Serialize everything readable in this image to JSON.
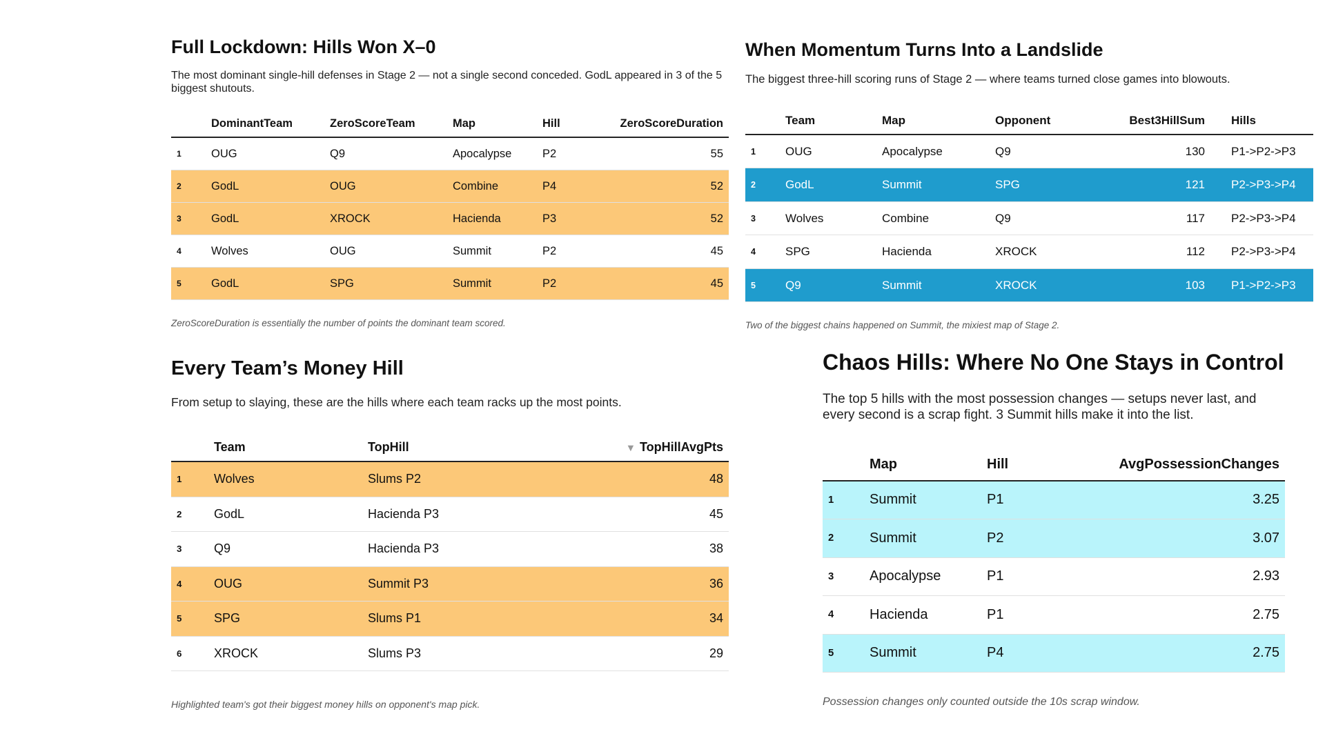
{
  "colors": {
    "orange_highlight": "#fcc878",
    "blue_highlight": "#1f9ccd",
    "cyan_highlight": "#b9f4fb"
  },
  "shutouts": {
    "title": "Full Lockdown: Hills Won X–0",
    "subtitle": "The most dominant single-hill defenses in Stage 2 — not a single second conceded. GodL appeared in 3 of the 5 biggest shutouts.",
    "columns": [
      "DominantTeam",
      "ZeroScoreTeam",
      "Map",
      "Hill",
      "ZeroScoreDuration"
    ],
    "rows": [
      {
        "rank": "1",
        "dominant": "OUG",
        "zero": "Q9",
        "map": "Apocalypse",
        "hill": "P2",
        "duration": "55",
        "highlight": false
      },
      {
        "rank": "2",
        "dominant": "GodL",
        "zero": "OUG",
        "map": "Combine",
        "hill": "P4",
        "duration": "52",
        "highlight": true
      },
      {
        "rank": "3",
        "dominant": "GodL",
        "zero": "XROCK",
        "map": "Hacienda",
        "hill": "P3",
        "duration": "52",
        "highlight": true
      },
      {
        "rank": "4",
        "dominant": "Wolves",
        "zero": "OUG",
        "map": "Summit",
        "hill": "P2",
        "duration": "45",
        "highlight": false
      },
      {
        "rank": "5",
        "dominant": "GodL",
        "zero": "SPG",
        "map": "Summit",
        "hill": "P2",
        "duration": "45",
        "highlight": true
      }
    ],
    "note": "ZeroScoreDuration is essentially the number of points the dominant team scored."
  },
  "landslide": {
    "title": "When Momentum Turns Into a Landslide",
    "subtitle": "The biggest three-hill scoring runs of Stage 2 — where teams turned close games into blowouts.",
    "columns": [
      "Team",
      "Map",
      "Opponent",
      "Best3HillSum",
      "Hills"
    ],
    "rows": [
      {
        "rank": "1",
        "team": "OUG",
        "map": "Apocalypse",
        "opponent": "Q9",
        "sum": "130",
        "hills": "P1->P2->P3",
        "highlight": false
      },
      {
        "rank": "2",
        "team": "GodL",
        "map": "Summit",
        "opponent": "SPG",
        "sum": "121",
        "hills": "P2->P3->P4",
        "highlight": true
      },
      {
        "rank": "3",
        "team": "Wolves",
        "map": "Combine",
        "opponent": "Q9",
        "sum": "117",
        "hills": "P2->P3->P4",
        "highlight": false
      },
      {
        "rank": "4",
        "team": "SPG",
        "map": "Hacienda",
        "opponent": "XROCK",
        "sum": "112",
        "hills": "P2->P3->P4",
        "highlight": false
      },
      {
        "rank": "5",
        "team": "Q9",
        "map": "Summit",
        "opponent": "XROCK",
        "sum": "103",
        "hills": "P1->P2->P3",
        "highlight": true
      }
    ],
    "note": "Two of the biggest chains happened on Summit, the mixiest map of Stage 2."
  },
  "money_hill": {
    "title": "Every Team’s Money Hill",
    "subtitle": "From setup to slaying, these are the hills where each team racks up the most points.",
    "columns": [
      "Team",
      "TopHill",
      "TopHillAvgPts"
    ],
    "sort_indicator": "▼",
    "rows": [
      {
        "rank": "1",
        "team": "Wolves",
        "tophill": "Slums P2",
        "avg": "48",
        "highlight": true
      },
      {
        "rank": "2",
        "team": "GodL",
        "tophill": "Hacienda P3",
        "avg": "45",
        "highlight": false
      },
      {
        "rank": "3",
        "team": "Q9",
        "tophill": "Hacienda P3",
        "avg": "38",
        "highlight": false
      },
      {
        "rank": "4",
        "team": "OUG",
        "tophill": "Summit P3",
        "avg": "36",
        "highlight": true
      },
      {
        "rank": "5",
        "team": "SPG",
        "tophill": "Slums P1",
        "avg": "34",
        "highlight": true
      },
      {
        "rank": "6",
        "team": "XROCK",
        "tophill": "Slums P3",
        "avg": "29",
        "highlight": false
      }
    ],
    "note": "Highlighted team's got their biggest money hills on opponent's map pick."
  },
  "chaos": {
    "title": "Chaos Hills: Where No One Stays in Control",
    "subtitle": "The top 5 hills with the most possession changes — setups never last, and every second is a scrap fight. 3 Summit hills make it into the list.",
    "columns": [
      "Map",
      "Hill",
      "AvgPossessionChanges"
    ],
    "rows": [
      {
        "rank": "1",
        "map": "Summit",
        "hill": "P1",
        "avg": "3.25",
        "highlight": true
      },
      {
        "rank": "2",
        "map": "Summit",
        "hill": "P2",
        "avg": "3.07",
        "highlight": true
      },
      {
        "rank": "3",
        "map": "Apocalypse",
        "hill": "P1",
        "avg": "2.93",
        "highlight": false
      },
      {
        "rank": "4",
        "map": "Hacienda",
        "hill": "P1",
        "avg": "2.75",
        "highlight": false
      },
      {
        "rank": "5",
        "map": "Summit",
        "hill": "P4",
        "avg": "2.75",
        "highlight": true
      }
    ],
    "note": "Possession changes only counted outside the 10s scrap window."
  }
}
